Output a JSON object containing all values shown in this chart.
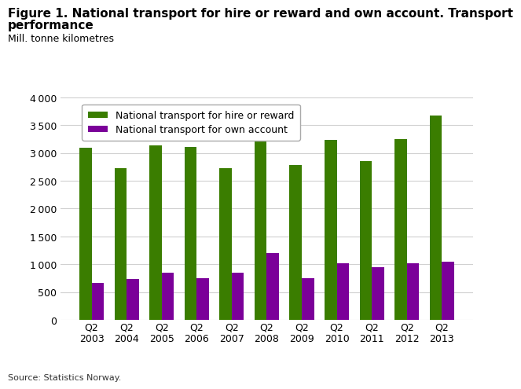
{
  "title_line1": "Figure 1. National transport for hire or reward and own account. Transport",
  "title_line2": "performance",
  "ylabel_text": "Mill. tonne kilometres",
  "source": "Source: Statistics Norway.",
  "categories": [
    "Q2\n2003",
    "Q2\n2004",
    "Q2\n2005",
    "Q2\n2006",
    "Q2\n2007",
    "Q2\n2008",
    "Q2\n2009",
    "Q2\n2010",
    "Q2\n2011",
    "Q2\n2012",
    "Q2\n2013"
  ],
  "hire_reward": [
    3100,
    2720,
    3130,
    3110,
    2730,
    3280,
    2780,
    3230,
    2850,
    3250,
    3680
  ],
  "own_account": [
    670,
    740,
    840,
    750,
    840,
    1200,
    750,
    1010,
    940,
    1010,
    1040
  ],
  "color_hire": "#3a7d00",
  "color_own": "#7b0099",
  "ylim": [
    0,
    4000
  ],
  "yticks": [
    0,
    500,
    1000,
    1500,
    2000,
    2500,
    3000,
    3500,
    4000
  ],
  "legend_hire": "National transport for hire or reward",
  "legend_own": "National transport for own account",
  "bar_width": 0.35,
  "background_color": "#ffffff",
  "plot_bg_color": "#ffffff",
  "grid_color": "#d0d0d0",
  "title_fontsize": 11,
  "label_fontsize": 9,
  "tick_fontsize": 9
}
